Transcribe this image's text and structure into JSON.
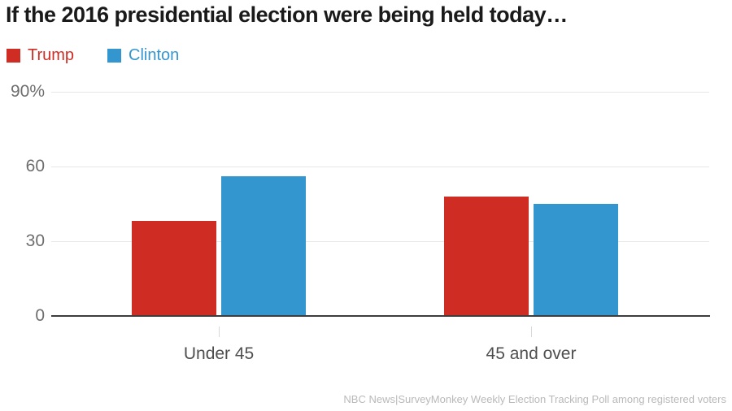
{
  "title": "If the 2016 presidential election were being held today…",
  "legend": {
    "items": [
      {
        "label": "Trump",
        "color": "#cf2d24"
      },
      {
        "label": "Clinton",
        "color": "#3496ce"
      }
    ]
  },
  "source_note": "NBC News|SurveyMonkey Weekly Election Tracking Poll among registered voters",
  "chart_data": {
    "type": "bar",
    "title": "If the 2016 presidential election were being held today…",
    "categories": [
      "Under 45",
      "45 and over"
    ],
    "series": [
      {
        "name": "Trump",
        "color": "#cf2d24",
        "values": [
          38,
          48
        ]
      },
      {
        "name": "Clinton",
        "color": "#3496ce",
        "values": [
          56,
          45
        ]
      }
    ],
    "xlabel": "",
    "ylabel": "",
    "ylim": [
      0,
      90
    ],
    "yticks": [
      {
        "value": 90,
        "label": "90%"
      },
      {
        "value": 60,
        "label": "60"
      },
      {
        "value": 30,
        "label": "30"
      },
      {
        "value": 0,
        "label": "0"
      }
    ],
    "grid": true,
    "legend_position": "top-left",
    "value_format": "percent",
    "source": "NBC News|SurveyMonkey Weekly Election Tracking Poll among registered voters"
  }
}
